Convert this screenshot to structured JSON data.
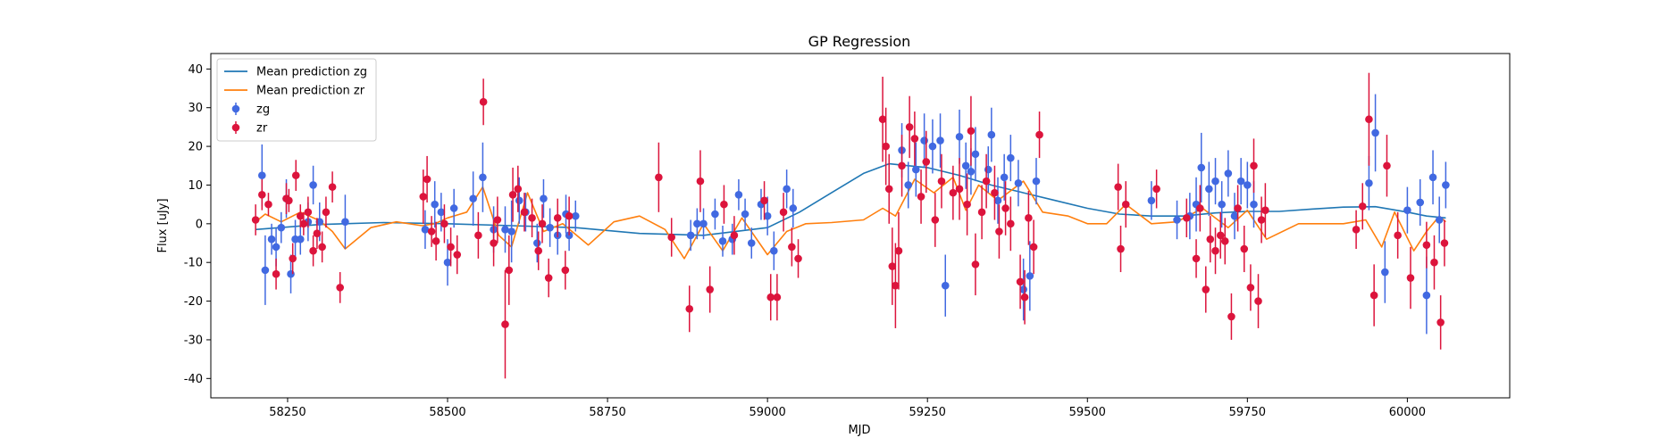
{
  "chart_data": {
    "type": "scatter",
    "title": "GP Regression",
    "xlabel": "MJD",
    "ylabel": "Flux [uJy]",
    "xlim": [
      58130,
      60160
    ],
    "ylim": [
      -45,
      44
    ],
    "xticks": [
      58250,
      58500,
      58750,
      59000,
      59250,
      59500,
      59750,
      60000
    ],
    "yticks": [
      -40,
      -30,
      -20,
      -10,
      0,
      10,
      20,
      30,
      40
    ],
    "grid": false,
    "legend_position": "top-left",
    "colors": {
      "zg": "#4169e1",
      "zr": "#dc143c",
      "mean_zg": "#1f77b4",
      "mean_zr": "#ff7f0e"
    },
    "series": [
      {
        "name": "Mean prediction zg",
        "kind": "line",
        "x": [
          58200,
          58300,
          58400,
          58500,
          58600,
          58700,
          58800,
          58900,
          59000,
          59050,
          59100,
          59150,
          59190,
          59250,
          59300,
          59350,
          59400,
          59450,
          59500,
          59550,
          59600,
          59650,
          59700,
          59750,
          59800,
          59850,
          59900,
          59950,
          60000,
          60030,
          60060
        ],
        "y": [
          -1.5,
          -0.2,
          0.3,
          0.0,
          -0.5,
          -1.0,
          -2.5,
          -3.0,
          -1.0,
          3.0,
          8.0,
          13.0,
          15.5,
          14.5,
          12.5,
          10.0,
          8.0,
          6.0,
          4.0,
          2.5,
          2.0,
          2.0,
          2.8,
          3.2,
          3.2,
          3.8,
          4.3,
          4.4,
          3.0,
          2.0,
          1.5
        ]
      },
      {
        "name": "Mean prediction zr",
        "kind": "line",
        "x": [
          58200,
          58215,
          58240,
          58270,
          58300,
          58320,
          58340,
          58380,
          58420,
          58460,
          58480,
          58500,
          58530,
          58555,
          58580,
          58600,
          58625,
          58650,
          58680,
          58720,
          58760,
          58800,
          58840,
          58870,
          58900,
          58930,
          58960,
          59000,
          59030,
          59060,
          59100,
          59150,
          59180,
          59200,
          59230,
          59260,
          59290,
          59310,
          59330,
          59360,
          59400,
          59430,
          59470,
          59500,
          59530,
          59560,
          59600,
          59640,
          59680,
          59720,
          59750,
          59780,
          59830,
          59900,
          59935,
          59960,
          59980,
          60010,
          60030,
          60050,
          60060
        ],
        "y": [
          0.5,
          2.5,
          0.5,
          3.0,
          0.8,
          -2.0,
          -6.5,
          -1.0,
          0.5,
          -0.5,
          0.0,
          1.5,
          3.0,
          9.5,
          -3.0,
          -6.0,
          8.0,
          -2.0,
          0.0,
          -5.5,
          0.5,
          2.0,
          -1.5,
          -9.0,
          0.0,
          -7.0,
          1.5,
          -8.0,
          -2.0,
          0.0,
          0.3,
          1.0,
          4.0,
          2.0,
          11.5,
          8.0,
          12.0,
          3.5,
          10.0,
          6.0,
          11.0,
          3.0,
          2.0,
          0.0,
          0.0,
          5.0,
          0.0,
          0.5,
          4.0,
          -1.0,
          3.5,
          -4.0,
          0.0,
          0.0,
          1.0,
          -6.0,
          3.0,
          -7.0,
          -2.0,
          2.0,
          0.5
        ]
      },
      {
        "name": "zg",
        "kind": "errorbar",
        "x": [
          58210,
          58215,
          58225,
          58232,
          58240,
          58248,
          58255,
          58262,
          58270,
          58282,
          58290,
          58300,
          58340,
          58465,
          58480,
          58490,
          58500,
          58510,
          58540,
          58555,
          58572,
          58590,
          58600,
          58612,
          58622,
          58640,
          58650,
          58660,
          58672,
          58685,
          58690,
          58700,
          58880,
          58890,
          58900,
          58918,
          58930,
          58945,
          58955,
          58965,
          58975,
          58990,
          59000,
          59010,
          59030,
          59040,
          59210,
          59220,
          59232,
          59245,
          59258,
          59270,
          59278,
          59300,
          59310,
          59318,
          59325,
          59345,
          59350,
          59360,
          59370,
          59380,
          59392,
          59400,
          59410,
          59420,
          59600,
          59640,
          59660,
          59670,
          59678,
          59690,
          59700,
          59710,
          59720,
          59730,
          59740,
          59750,
          59760,
          59940,
          59950,
          59965,
          60000,
          60020,
          60030,
          60040,
          60050,
          60060
        ],
        "y": [
          12.5,
          -12,
          -4.0,
          -6.0,
          -1.0,
          6.5,
          -13.0,
          -4.0,
          -4.0,
          0.5,
          10.0,
          0.5,
          0.5,
          -1.5,
          5.0,
          3.0,
          -10.0,
          4.0,
          6.5,
          12.0,
          -1.5,
          -1.5,
          -2.0,
          6.0,
          3.0,
          -5.0,
          6.5,
          -1.0,
          -3.0,
          2.5,
          -3.0,
          2.0,
          -3.0,
          0.0,
          0.0,
          2.5,
          -4.5,
          -4.0,
          7.5,
          2.5,
          -5.0,
          5.0,
          2.0,
          -7.0,
          9.0,
          4.0,
          19.0,
          10.0,
          14.0,
          21.5,
          20.0,
          21.5,
          -16.0,
          22.5,
          15.0,
          13.5,
          18.0,
          14.0,
          23.0,
          6.0,
          12.0,
          17.0,
          10.5,
          -17.0,
          -13.5,
          11.0,
          6.0,
          1.0,
          2.0,
          5.0,
          14.5,
          9.0,
          11.0,
          5.0,
          13.0,
          2.0,
          11.0,
          10.0,
          5.0,
          10.5,
          23.5,
          -12.5,
          3.5,
          5.5,
          -18.5,
          12.0,
          1.0,
          10.0
        ],
        "yerr": [
          8,
          9,
          4,
          5,
          4,
          5,
          5,
          5,
          4,
          5,
          5,
          5,
          7,
          5,
          6,
          5,
          6,
          5,
          7,
          9,
          6,
          6,
          8,
          6,
          5,
          5,
          5,
          5,
          5,
          5,
          4,
          4,
          4,
          4,
          4,
          4,
          4,
          4,
          4,
          4,
          4,
          4,
          5,
          5,
          5,
          5,
          7,
          6,
          7,
          7,
          7,
          7,
          8,
          7,
          6,
          6,
          7,
          6,
          7,
          6,
          6,
          6,
          6,
          8,
          9,
          6,
          5,
          5,
          6,
          7,
          9,
          7,
          6,
          6,
          6,
          6,
          6,
          6,
          6,
          7,
          10,
          8,
          6,
          6,
          10,
          7,
          6,
          6
        ]
      },
      {
        "name": "zr",
        "kind": "errorbar",
        "x": [
          58200,
          58210,
          58220,
          58232,
          58248,
          58252,
          58258,
          58263,
          58270,
          58275,
          58282,
          58290,
          58296,
          58304,
          58310,
          58320,
          58332,
          58462,
          58468,
          58475,
          58482,
          58495,
          58505,
          58515,
          58548,
          58556,
          58572,
          58578,
          58590,
          58596,
          58602,
          58610,
          58620,
          58632,
          58642,
          58648,
          58658,
          58672,
          58684,
          58690,
          58830,
          58850,
          58878,
          58895,
          58910,
          58932,
          58948,
          58995,
          59005,
          59015,
          59025,
          59038,
          59048,
          59180,
          59185,
          59190,
          59195,
          59200,
          59205,
          59210,
          59222,
          59230,
          59240,
          59248,
          59262,
          59272,
          59290,
          59300,
          59312,
          59318,
          59325,
          59335,
          59342,
          59355,
          59362,
          59372,
          59380,
          59395,
          59402,
          59408,
          59416,
          59425,
          59548,
          59552,
          59560,
          59608,
          59655,
          59670,
          59676,
          59685,
          59692,
          59700,
          59708,
          59715,
          59725,
          59735,
          59745,
          59755,
          59760,
          59767,
          59772,
          59778,
          59920,
          59930,
          59940,
          59948,
          59968,
          59985,
          60005,
          60030,
          60042,
          60052,
          60058
        ],
        "y": [
          1.0,
          7.5,
          5.0,
          -13.0,
          6.5,
          6.0,
          -9.0,
          12.5,
          2.0,
          0.0,
          3.0,
          -7.0,
          -2.5,
          -6.0,
          3.0,
          9.5,
          -16.5,
          7.0,
          11.5,
          -2.0,
          -4.5,
          0.0,
          -6.0,
          -8.0,
          -3.0,
          31.5,
          -5.0,
          1.0,
          -26.0,
          -12.0,
          7.5,
          9.0,
          3.0,
          1.5,
          -7.0,
          0.0,
          -14.0,
          1.5,
          -12.0,
          2.0,
          12.0,
          -3.5,
          -22.0,
          11.0,
          -17.0,
          5.0,
          -3.0,
          6.0,
          -19.0,
          -19.0,
          3.0,
          -6.0,
          -9.0,
          27.0,
          20.0,
          9.0,
          -11.0,
          -16.0,
          -7.0,
          15.0,
          25.0,
          22.0,
          7.0,
          16.0,
          1.0,
          11.0,
          8.0,
          9.0,
          5.0,
          24.0,
          -10.5,
          3.0,
          11.0,
          8.0,
          -2.0,
          4.0,
          0.0,
          -15.0,
          -19.0,
          1.5,
          -6.0,
          23.0,
          9.5,
          -6.5,
          5.0,
          9.0,
          1.5,
          -9.0,
          4.0,
          -17.0,
          -4.0,
          -7.0,
          -3.0,
          -4.5,
          -24.0,
          4.0,
          -6.5,
          -16.5,
          15.0,
          -20.0,
          1.0,
          3.5,
          -1.5,
          4.5,
          27.0,
          -18.5,
          15.0,
          -3.0,
          -14.0,
          -5.5,
          -10.0,
          -25.5,
          -5.0
        ],
        "yerr": [
          4,
          4,
          3,
          4,
          4,
          3,
          4,
          4,
          3,
          3,
          4,
          4,
          4,
          4,
          4,
          4,
          4,
          7,
          6,
          4,
          5,
          5,
          5,
          5,
          6,
          6,
          6,
          6,
          14,
          9,
          7,
          6,
          5,
          5,
          5,
          5,
          5,
          5,
          5,
          5,
          9,
          5,
          6,
          8,
          6,
          5,
          5,
          5,
          6,
          6,
          5,
          5,
          5,
          11,
          10,
          9,
          10,
          11,
          10,
          8,
          8,
          7,
          7,
          8,
          7,
          7,
          7,
          8,
          8,
          9,
          8,
          7,
          7,
          7,
          7,
          7,
          7,
          7,
          7,
          7,
          7,
          6,
          6,
          6,
          6,
          5,
          5,
          5,
          6,
          6,
          6,
          6,
          6,
          6,
          6,
          6,
          6,
          6,
          7,
          7,
          6,
          7,
          5,
          6,
          12,
          8,
          8,
          6,
          8,
          6,
          7,
          7,
          6
        ]
      }
    ]
  }
}
